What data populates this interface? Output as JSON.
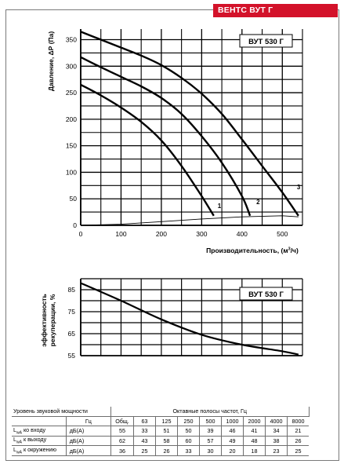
{
  "header": {
    "badge": "ВЕНТС ВУТ Г"
  },
  "chart_data": [
    {
      "type": "line",
      "model_label": "ВУТ 530 Г",
      "xlabel": "Производительность, (м³/ч)",
      "xlabel_parts": [
        "Производительность, (м",
        "3",
        "/ч)"
      ],
      "ylabel": "Давление, ΔР (Па)",
      "xlim": [
        0,
        550
      ],
      "ylim": [
        0,
        370
      ],
      "x_ticks": [
        0,
        100,
        200,
        300,
        400,
        500
      ],
      "y_ticks": [
        0,
        50,
        100,
        150,
        200,
        250,
        300,
        350
      ],
      "grid": true,
      "series": [
        {
          "name": "1",
          "x": [
            0,
            50,
            100,
            150,
            200,
            250,
            300,
            330
          ],
          "y": [
            265,
            245,
            222,
            195,
            160,
            112,
            55,
            18
          ]
        },
        {
          "name": "2",
          "x": [
            0,
            50,
            100,
            150,
            200,
            250,
            300,
            350,
            400,
            420
          ],
          "y": [
            317,
            298,
            280,
            262,
            240,
            210,
            168,
            118,
            55,
            18
          ]
        },
        {
          "name": "3",
          "x": [
            0,
            50,
            100,
            150,
            200,
            250,
            300,
            350,
            400,
            450,
            500,
            540
          ],
          "y": [
            365,
            350,
            335,
            320,
            302,
            278,
            248,
            210,
            162,
            112,
            62,
            18
          ]
        }
      ],
      "system_curve": {
        "x": [
          0,
          100,
          200,
          300,
          400,
          500,
          540
        ],
        "y": [
          0,
          2,
          7,
          12,
          16,
          18,
          16
        ]
      }
    },
    {
      "type": "line",
      "model_label": "ВУТ 530 Г",
      "ylabel": "эффективность рекуперации, %",
      "ylabel_lines": [
        "эффективность",
        "рекуперации, %"
      ],
      "xlim": [
        0,
        550
      ],
      "ylim": [
        55,
        90
      ],
      "y_ticks": [
        55,
        65,
        75,
        85
      ],
      "grid": true,
      "series": [
        {
          "x": [
            0,
            100,
            200,
            300,
            400,
            500,
            540
          ],
          "y": [
            88,
            80,
            71.5,
            64.5,
            60,
            57,
            55.5
          ]
        }
      ]
    }
  ],
  "sound_table": {
    "title": "Уровень звуковой мощности",
    "band_title": "Октавные полосы частот, Гц",
    "unit_header": "Гц",
    "columns": [
      "Общ.",
      "63",
      "125",
      "250",
      "500",
      "1000",
      "2000",
      "4000",
      "8000"
    ],
    "subscript": "wA",
    "rows": [
      {
        "prefix": "L",
        "suffix": " ко входу",
        "unit": "дБ(А)",
        "values": [
          "55",
          "33",
          "51",
          "50",
          "39",
          "46",
          "41",
          "34",
          "21"
        ]
      },
      {
        "prefix": "L",
        "suffix": " к выходу",
        "unit": "дБ(А)",
        "values": [
          "62",
          "43",
          "58",
          "60",
          "57",
          "49",
          "48",
          "38",
          "26"
        ]
      },
      {
        "prefix": "L",
        "suffix": " к окружению",
        "unit": "дБ(А)",
        "values": [
          "36",
          "25",
          "26",
          "33",
          "30",
          "20",
          "18",
          "23",
          "25"
        ]
      }
    ]
  }
}
